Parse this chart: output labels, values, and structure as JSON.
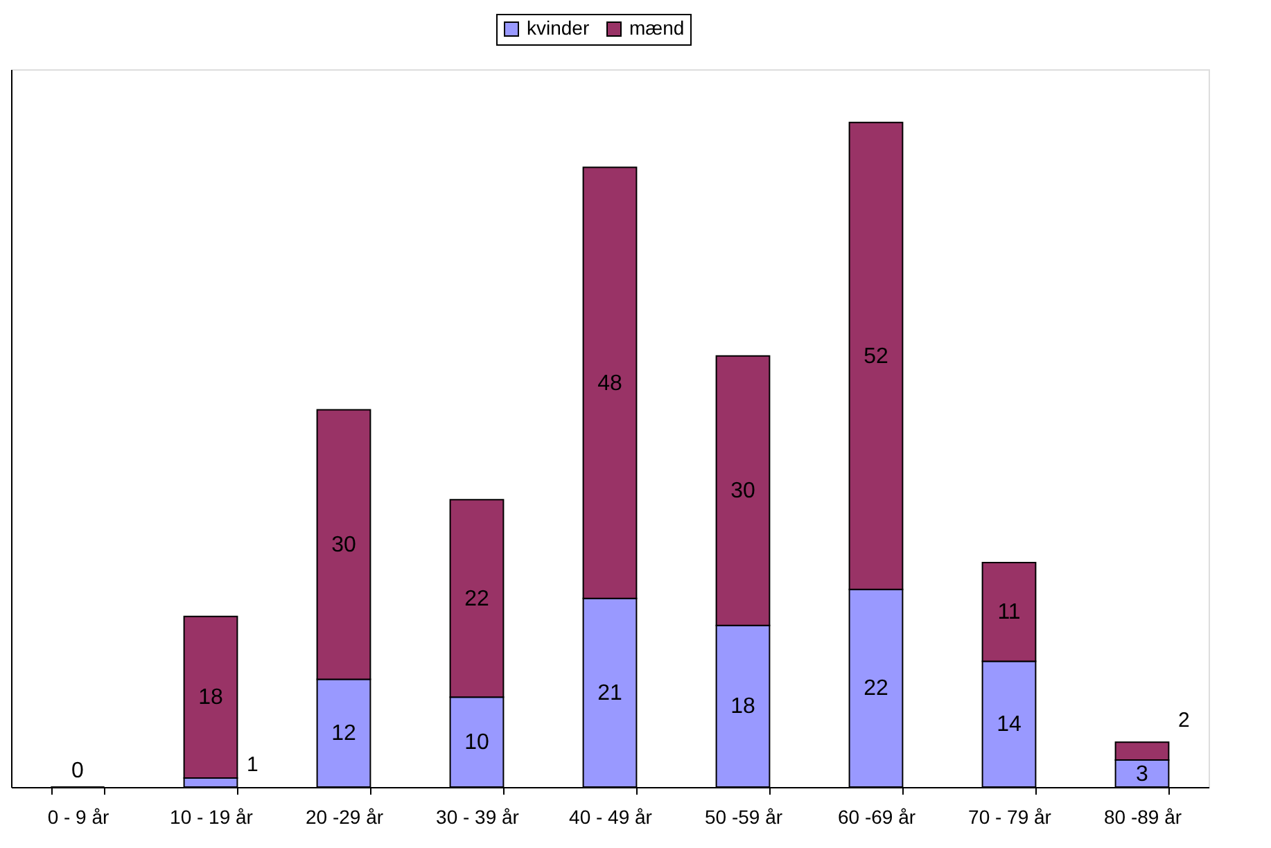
{
  "chart_data": {
    "type": "bar",
    "stacked": true,
    "legend": "top",
    "grid": false,
    "categories": [
      "0 - 9 år",
      "10 - 19 år",
      "20 -29 år",
      "30 - 39 år",
      "40 - 49 år",
      "50 -59 år",
      "60 -69 år",
      "70 - 79 år",
      "80 -89 år"
    ],
    "series": [
      {
        "name": "kvinder",
        "color": "#9999ff",
        "values": [
          0,
          1,
          12,
          10,
          21,
          18,
          22,
          14,
          3
        ],
        "value_labels": [
          "0",
          "1",
          "12",
          "10",
          "21",
          "18",
          "22",
          "14",
          "3"
        ]
      },
      {
        "name": "mænd",
        "color": "#993366",
        "values": [
          0,
          18,
          30,
          22,
          48,
          30,
          52,
          11,
          2
        ],
        "value_labels": [
          null,
          "18",
          "30",
          "22",
          "48",
          "30",
          "52",
          "11",
          "2"
        ]
      }
    ]
  }
}
